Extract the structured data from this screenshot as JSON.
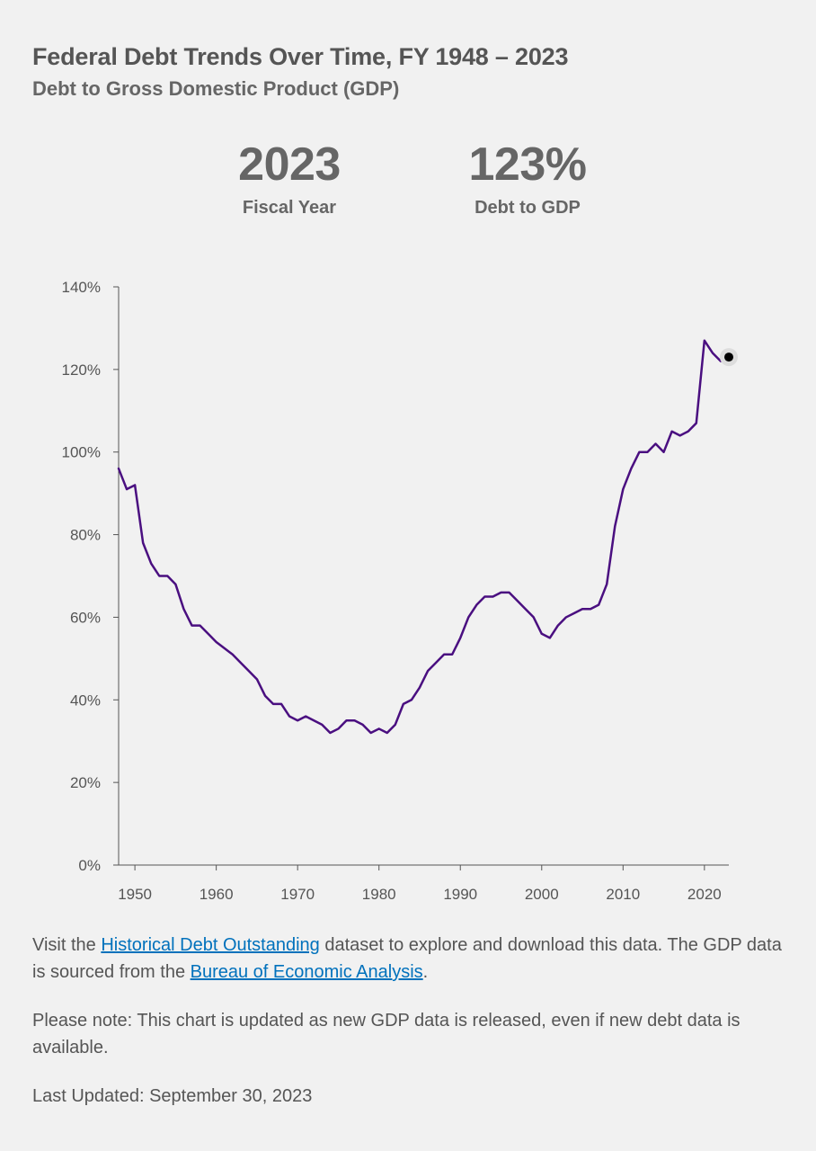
{
  "header": {
    "title": "Federal Debt Trends Over Time, FY 1948 – 2023",
    "subtitle": "Debt to Gross Domestic Product (GDP)"
  },
  "stats": {
    "year_value": "2023",
    "year_label": "Fiscal Year",
    "debt_value": "123%",
    "debt_label": "Debt to GDP"
  },
  "footer": {
    "p1_prefix": "Visit the ",
    "p1_link1": "Historical Debt Outstanding",
    "p1_middle": " dataset to explore and download this data. The GDP data is sourced from the ",
    "p1_link2": "Bureau of Economic Analysis",
    "p1_suffix": ".",
    "note": "Please note: This chart is updated as new GDP data is released, even if new debt data is available.",
    "last_updated": "Last Updated: September 30, 2023"
  },
  "colors": {
    "line": "#4a0f80",
    "axis": "#555555",
    "link": "#0071bc",
    "highlight_point": "#000000"
  },
  "chart_data": {
    "type": "line",
    "title": "",
    "xlabel": "",
    "ylabel": "",
    "xlim": [
      1948,
      2023
    ],
    "ylim": [
      0,
      140
    ],
    "y_ticks": [
      0,
      20,
      40,
      60,
      80,
      100,
      120,
      140
    ],
    "y_tick_labels": [
      "0%",
      "20%",
      "40%",
      "60%",
      "80%",
      "100%",
      "120%",
      "140%"
    ],
    "x_ticks": [
      1950,
      1960,
      1970,
      1980,
      1990,
      2000,
      2010,
      2020
    ],
    "x_tick_labels": [
      "1950",
      "1960",
      "1970",
      "1980",
      "1990",
      "2000",
      "2010",
      "2020"
    ],
    "grid": false,
    "highlighted_point": {
      "x": 2023,
      "y": 123
    },
    "series": [
      {
        "x": [
          1948,
          1949,
          1950,
          1951,
          1952,
          1953,
          1954,
          1955,
          1956,
          1957,
          1958,
          1959,
          1960,
          1961,
          1962,
          1963,
          1964,
          1965,
          1966,
          1967,
          1968,
          1969,
          1970,
          1971,
          1972,
          1973,
          1974,
          1975,
          1976,
          1977,
          1978,
          1979,
          1980,
          1981,
          1982,
          1983,
          1984,
          1985,
          1986,
          1987,
          1988,
          1989,
          1990,
          1991,
          1992,
          1993,
          1994,
          1995,
          1996,
          1997,
          1998,
          1999,
          2000,
          2001,
          2002,
          2003,
          2004,
          2005,
          2006,
          2007,
          2008,
          2009,
          2010,
          2011,
          2012,
          2013,
          2014,
          2015,
          2016,
          2017,
          2018,
          2019,
          2020,
          2021,
          2022,
          2023
        ],
        "values": [
          96,
          91,
          92,
          78,
          73,
          70,
          70,
          68,
          62,
          58,
          58,
          56,
          54,
          52.5,
          51,
          49,
          47,
          45,
          41,
          39,
          39,
          36,
          35,
          36,
          35,
          34,
          32,
          33,
          35,
          35,
          34,
          32,
          33,
          32,
          34,
          39,
          40,
          43,
          47,
          49,
          51,
          51,
          55,
          60,
          63,
          65,
          65,
          66,
          66,
          64,
          62,
          60,
          56,
          55,
          58,
          60,
          61,
          62,
          62,
          63,
          68,
          82,
          91,
          96,
          100,
          100,
          102,
          100,
          105,
          104,
          105,
          107,
          127,
          124,
          122,
          123
        ]
      }
    ]
  }
}
